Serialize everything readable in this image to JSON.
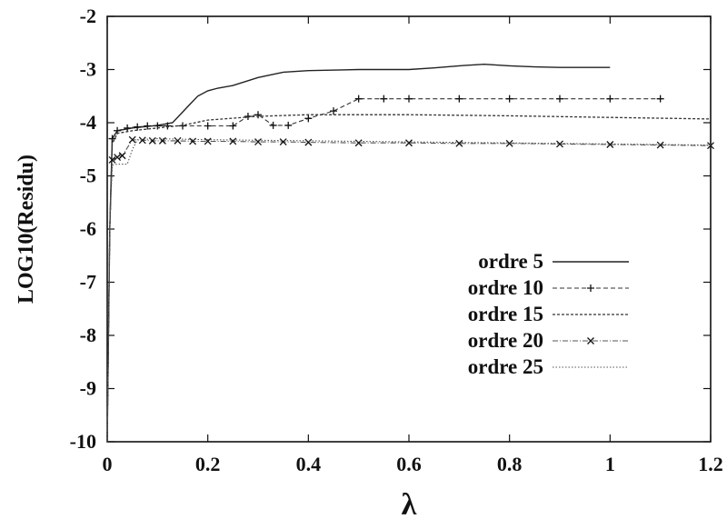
{
  "chart_data": {
    "type": "line",
    "xlabel": "λ",
    "ylabel": "LOG10(Residu)",
    "xlim": [
      0,
      1.2
    ],
    "ylim": [
      -10,
      -2
    ],
    "x_ticks": [
      0,
      0.2,
      0.4,
      0.6,
      0.8,
      1,
      1.2
    ],
    "x_tick_labels": [
      "0",
      "0.2",
      "0.4",
      "0.6",
      "0.8",
      "1",
      "1.2"
    ],
    "y_ticks": [
      -10,
      -9,
      -8,
      -7,
      -6,
      -5,
      -4,
      -3,
      -2
    ],
    "y_tick_labels": [
      "-10",
      "-9",
      "-8",
      "-7",
      "-6",
      "-5",
      "-4",
      "-3",
      "-2"
    ],
    "grid": false,
    "legend_position": "center-right",
    "series": [
      {
        "name": "ordre 5",
        "style": "solid",
        "marker": "none",
        "x": [
          0,
          0.005,
          0.01,
          0.02,
          0.05,
          0.1,
          0.13,
          0.16,
          0.18,
          0.2,
          0.22,
          0.25,
          0.3,
          0.35,
          0.4,
          0.5,
          0.6,
          0.65,
          0.7,
          0.75,
          0.8,
          0.85,
          0.9,
          1.0
        ],
        "y": [
          -10,
          -6,
          -4.3,
          -4.15,
          -4.1,
          -4.05,
          -4.0,
          -3.7,
          -3.5,
          -3.4,
          -3.35,
          -3.3,
          -3.15,
          -3.05,
          -3.02,
          -3.0,
          -3.0,
          -2.97,
          -2.93,
          -2.9,
          -2.93,
          -2.95,
          -2.96,
          -2.96
        ]
      },
      {
        "name": "ordre 10",
        "style": "dashed",
        "marker": "plus",
        "x": [
          0,
          0.005,
          0.01,
          0.02,
          0.04,
          0.06,
          0.08,
          0.1,
          0.12,
          0.15,
          0.2,
          0.25,
          0.28,
          0.3,
          0.33,
          0.36,
          0.4,
          0.45,
          0.5,
          0.55,
          0.6,
          0.7,
          0.8,
          0.9,
          1.0,
          1.1
        ],
        "y": [
          -10,
          -6,
          -4.3,
          -4.15,
          -4.1,
          -4.08,
          -4.06,
          -4.06,
          -4.06,
          -4.06,
          -4.06,
          -4.06,
          -3.88,
          -3.85,
          -4.05,
          -4.05,
          -3.92,
          -3.78,
          -3.55,
          -3.55,
          -3.55,
          -3.55,
          -3.55,
          -3.55,
          -3.55,
          -3.55
        ]
      },
      {
        "name": "ordre 15",
        "style": "dotted",
        "marker": "none",
        "x": [
          0,
          0.005,
          0.01,
          0.02,
          0.05,
          0.1,
          0.15,
          0.2,
          0.3,
          0.4,
          0.6,
          0.8,
          1.0,
          1.2
        ],
        "y": [
          -10,
          -6,
          -4.4,
          -4.2,
          -4.15,
          -4.1,
          -4.05,
          -3.95,
          -3.88,
          -3.85,
          -3.85,
          -3.87,
          -3.9,
          -3.93
        ]
      },
      {
        "name": "ordre 20",
        "style": "dash-dot",
        "marker": "x",
        "x": [
          0,
          0.005,
          0.01,
          0.02,
          0.03,
          0.05,
          0.07,
          0.09,
          0.11,
          0.14,
          0.17,
          0.2,
          0.25,
          0.3,
          0.35,
          0.4,
          0.5,
          0.6,
          0.7,
          0.8,
          0.9,
          1.0,
          1.1,
          1.2
        ],
        "y": [
          -10,
          -6,
          -4.7,
          -4.65,
          -4.62,
          -4.32,
          -4.33,
          -4.34,
          -4.34,
          -4.34,
          -4.35,
          -4.35,
          -4.35,
          -4.36,
          -4.36,
          -4.37,
          -4.38,
          -4.38,
          -4.39,
          -4.39,
          -4.4,
          -4.41,
          -4.42,
          -4.43
        ]
      },
      {
        "name": "ordre 25",
        "style": "fine-dotted",
        "marker": "none",
        "x": [
          0,
          0.005,
          0.01,
          0.02,
          0.04,
          0.05,
          0.06,
          0.1,
          0.2,
          0.4,
          0.6,
          0.8,
          1.0,
          1.2
        ],
        "y": [
          -10,
          -6,
          -4.8,
          -4.78,
          -4.78,
          -4.5,
          -4.32,
          -4.3,
          -4.32,
          -4.34,
          -4.36,
          -4.38,
          -4.4,
          -4.42
        ]
      }
    ]
  }
}
